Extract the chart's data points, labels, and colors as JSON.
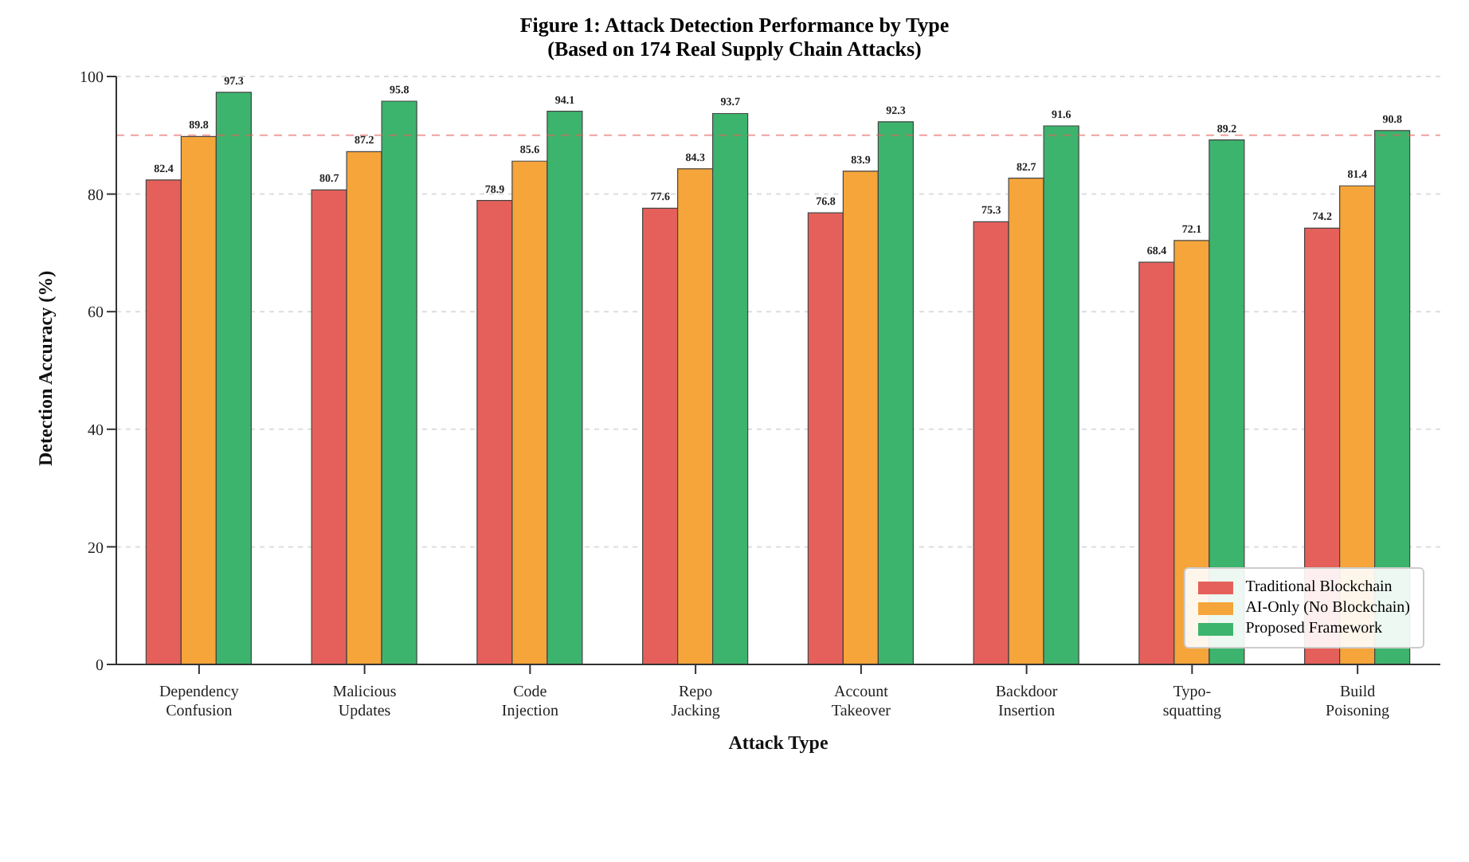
{
  "chart_data": {
    "type": "bar",
    "title": "Figure 1: Attack Detection Performance by Type",
    "subtitle": "(Based on 174 Real Supply Chain Attacks)",
    "xlabel": "Attack Type",
    "ylabel": "Detection Accuracy (%)",
    "categories": [
      "Dependency\nConfusion",
      "Malicious\nUpdates",
      "Code\nInjection",
      "Repo\nJacking",
      "Account\nTakeover",
      "Backdoor\nInsertion",
      "Typo-\nsquatting",
      "Build\nPoisoning"
    ],
    "series": [
      {
        "name": "Traditional Blockchain",
        "color": "#e5605a",
        "values": [
          82.4,
          80.7,
          78.9,
          77.6,
          76.8,
          75.3,
          68.4,
          74.2
        ]
      },
      {
        "name": "AI-Only (No Blockchain)",
        "color": "#f5a53a",
        "values": [
          89.8,
          87.2,
          85.6,
          84.3,
          83.9,
          82.7,
          72.1,
          81.4
        ]
      },
      {
        "name": "Proposed Framework",
        "color": "#3db46d",
        "values": [
          97.3,
          95.8,
          94.1,
          93.7,
          92.3,
          91.6,
          89.2,
          90.8
        ]
      }
    ],
    "ylim": [
      0,
      100
    ],
    "yticks": [
      0,
      20,
      40,
      60,
      80,
      100
    ],
    "grid": "y",
    "legend": "bottom right",
    "data_labels": true,
    "ref_lines": [
      {
        "axis": "y",
        "value": 90,
        "color": "#e5605a",
        "line_style": "dashed"
      }
    ]
  }
}
